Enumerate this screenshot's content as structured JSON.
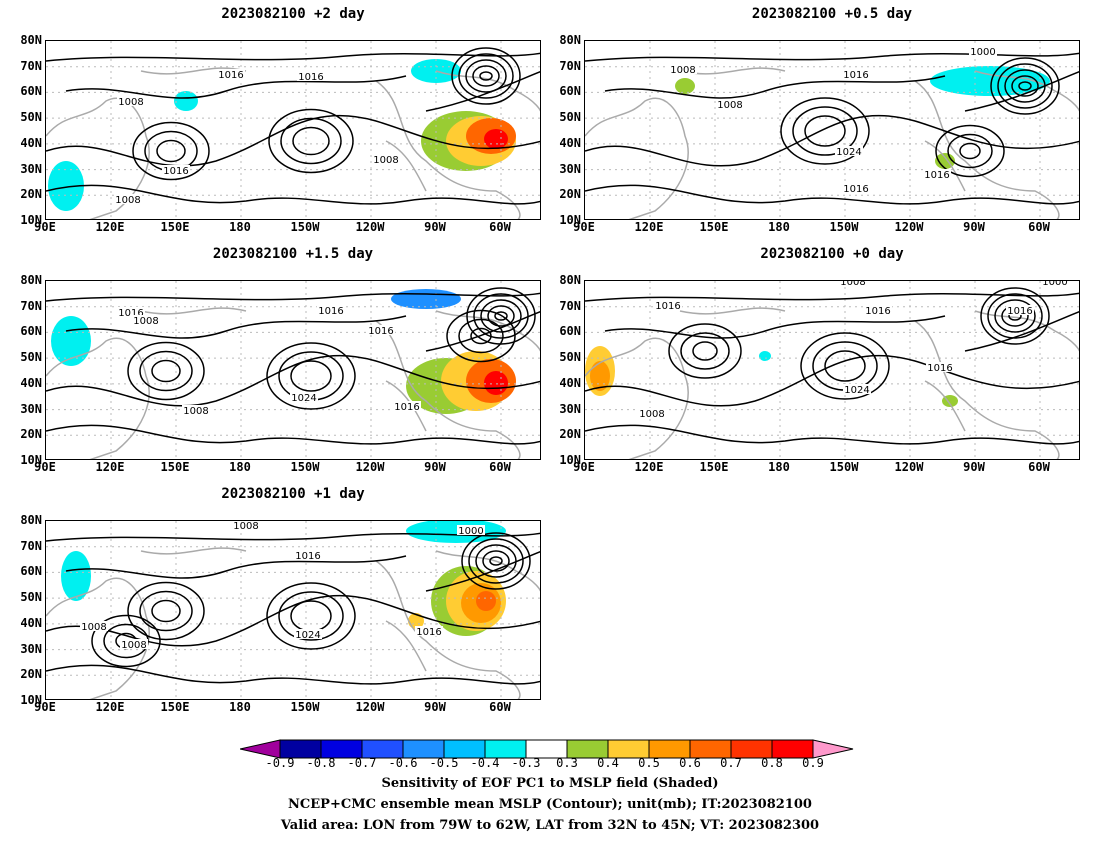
{
  "panels": [
    {
      "title": "2023082100 +2 day",
      "id": "p2"
    },
    {
      "title": "2023082100 +0.5 day",
      "id": "p05"
    },
    {
      "title": "2023082100 +1.5 day",
      "id": "p15"
    },
    {
      "title": "2023082100 +0 day",
      "id": "p0"
    },
    {
      "title": "2023082100 +1 day",
      "id": "p1"
    }
  ],
  "lat_labels": [
    "80N",
    "70N",
    "60N",
    "50N",
    "40N",
    "30N",
    "20N",
    "10N"
  ],
  "lon_labels": [
    "90E",
    "120E",
    "150E",
    "180",
    "150W",
    "120W",
    "90W",
    "60W"
  ],
  "colorbar": {
    "labels": [
      "-0.9",
      "-0.8",
      "-0.7",
      "-0.6",
      "-0.5",
      "-0.4",
      "-0.3",
      "0.3",
      "0.4",
      "0.5",
      "0.6",
      "0.7",
      "0.8",
      "0.9"
    ],
    "colors": [
      "#a0009c",
      "#0000a0",
      "#0000e0",
      "#2050ff",
      "#1e90ff",
      "#00bfff",
      "#00f0f0",
      "#ffffff",
      "#99cc33",
      "#ffcc33",
      "#ff9900",
      "#ff6600",
      "#ff3300",
      "#ff0000",
      "#ff99cc"
    ]
  },
  "contour_labels": {
    "p2": [
      "1016",
      "1016",
      "1008",
      "1016",
      "1008",
      "1008"
    ],
    "p05": [
      "1000",
      "1008",
      "1016",
      "1008",
      "1024",
      "1016",
      "1016"
    ],
    "p15": [
      "1016",
      "1008",
      "1016",
      "1016",
      "1016",
      "1024",
      "1008",
      "1016"
    ],
    "p0": [
      "1008",
      "1016",
      "1016",
      "1000",
      "1016",
      "1024",
      "1016",
      "1008"
    ],
    "p1": [
      "1008",
      "1016",
      "1000",
      "1008",
      "1008",
      "1024",
      "1016"
    ]
  },
  "caption": {
    "line1": "Sensitivity of EOF PC1 to MSLP field (Shaded)",
    "line2": "NCEP+CMC ensemble mean MSLP (Contour); unit(mb); IT:2023082100",
    "line3": "Valid area: LON from 79W to 62W, LAT from 32N to 45N; VT: 2023082300"
  }
}
